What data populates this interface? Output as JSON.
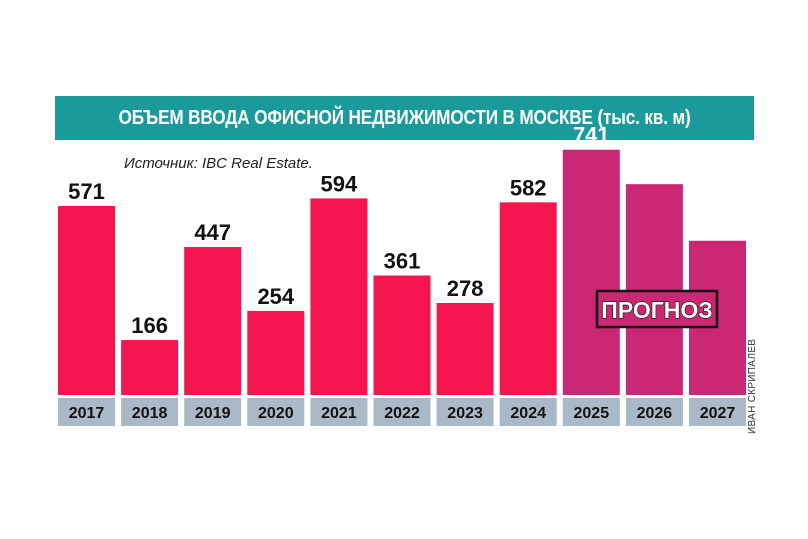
{
  "chart_data": {
    "type": "bar",
    "title": "ОБЪЕМ ВВОДА ОФИСНОЙ НЕДВИЖИМОСТИ В МОСКВЕ (тыс. кв. м)",
    "subtitle": "Источник: IBC Real Estate.",
    "categories": [
      "2017",
      "2018",
      "2019",
      "2020",
      "2021",
      "2022",
      "2023",
      "2024",
      "2025",
      "2026",
      "2027"
    ],
    "values": [
      571,
      166,
      447,
      254,
      594,
      361,
      278,
      582,
      741,
      637,
      466
    ],
    "value_labels": [
      "571",
      "166",
      "447",
      "254",
      "594",
      "361",
      "278",
      "582",
      "741",
      "637",
      "466"
    ],
    "forecast_from_index": 8,
    "forecast_label": "ПРОГНОЗ",
    "xlabel": "",
    "ylabel": "",
    "grid": false,
    "colors": {
      "actual": "#f5164f",
      "forecast": "#cc2775",
      "category_box": "#a9b9c7",
      "title_bar": "#1a9a9a"
    }
  },
  "credit": "ИВАН СКРИПАЛЕВ"
}
